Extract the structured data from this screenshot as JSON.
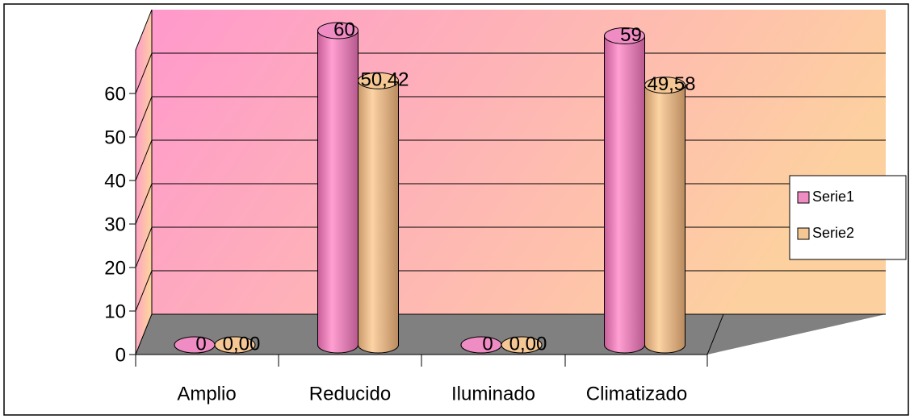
{
  "chart_data": {
    "type": "bar",
    "categories": [
      "Amplio",
      "Reducido",
      "Iluminado",
      "Climatizado"
    ],
    "series": [
      {
        "name": "Serie1",
        "color": "#f08cc4",
        "values": [
          0,
          60,
          0,
          59
        ],
        "value_labels": [
          "0",
          "60",
          "0",
          "59"
        ]
      },
      {
        "name": "Serie2",
        "color": "#f5c794",
        "values": [
          0,
          50.42,
          0,
          49.58
        ],
        "value_labels": [
          "0,00",
          "50,42",
          "0,00",
          "49,58"
        ]
      }
    ],
    "ylim": [
      0,
      70
    ],
    "yticks": [
      0,
      10,
      20,
      30,
      40,
      50,
      60
    ],
    "grid": true,
    "legend": "right"
  }
}
